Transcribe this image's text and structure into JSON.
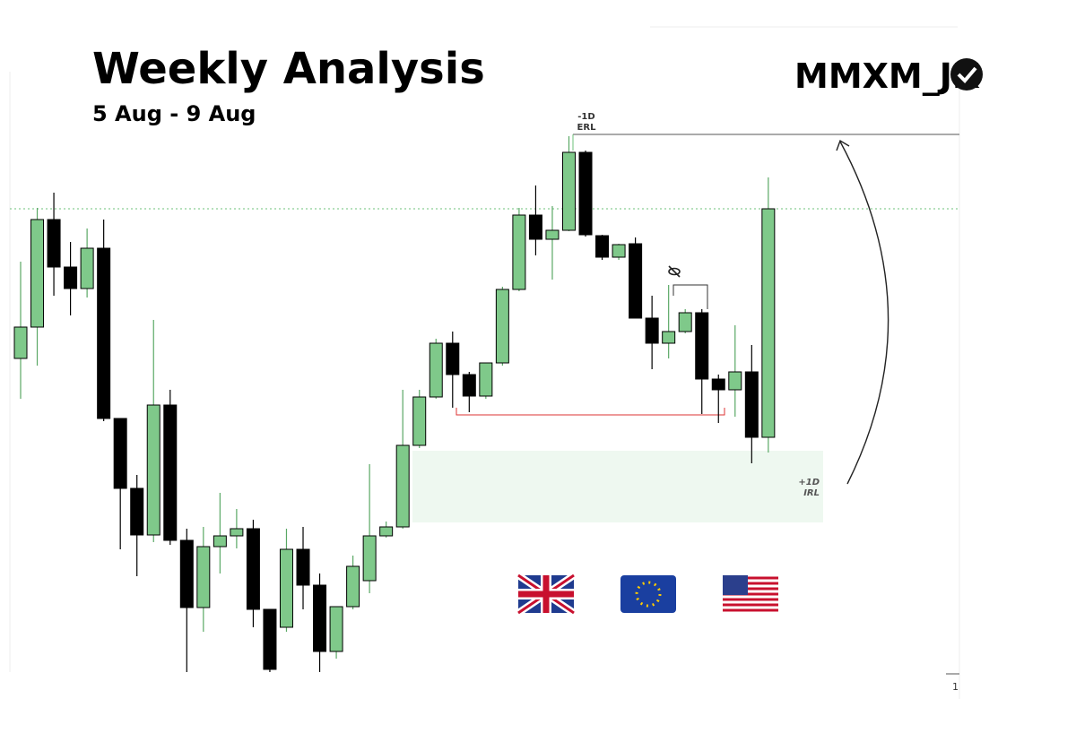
{
  "chart_data": {
    "type": "candlestick",
    "title": "Weekly Analysis",
    "subtitle": "5 Aug - 9 Aug",
    "brand": "MMXM_JK",
    "annotations": {
      "erl_top": "-1D",
      "erl_bottom": "ERL",
      "irl_top": "+1D",
      "irl_bottom": "IRL",
      "page": "1"
    },
    "up_color": "#7fc98a",
    "down_color": "#000000",
    "ylim": [
      0,
      640
    ],
    "open": [
      370,
      405,
      525,
      472,
      448,
      493,
      303,
      225,
      173,
      318,
      167,
      92,
      160,
      172,
      180,
      90,
      70,
      157,
      117,
      43,
      93,
      122,
      172,
      182,
      273,
      327,
      387,
      352,
      328,
      365,
      447,
      530,
      503,
      513,
      600,
      507,
      483,
      498,
      415,
      387,
      400,
      421,
      347,
      335,
      355,
      282
    ],
    "high": [
      478,
      538,
      555,
      500,
      515,
      525,
      303,
      240,
      413,
      335,
      180,
      182,
      220,
      202,
      190,
      90,
      180,
      182,
      130,
      93,
      150,
      252,
      188,
      335,
      335,
      392,
      400,
      355,
      365,
      450,
      538,
      563,
      540,
      618,
      602,
      508,
      498,
      505,
      440,
      452,
      425,
      425,
      352,
      407,
      385,
      572
    ],
    "low": [
      325,
      362,
      440,
      418,
      438,
      300,
      157,
      127,
      165,
      162,
      20,
      65,
      130,
      158,
      70,
      20,
      65,
      90,
      20,
      35,
      90,
      108,
      170,
      180,
      270,
      325,
      315,
      310,
      325,
      362,
      445,
      485,
      458,
      512,
      506,
      480,
      480,
      415,
      358,
      370,
      398,
      308,
      298,
      305,
      253,
      265
    ],
    "close": [
      405,
      525,
      472,
      448,
      493,
      303,
      225,
      173,
      318,
      167,
      92,
      160,
      172,
      180,
      90,
      23,
      157,
      117,
      43,
      93,
      138,
      172,
      182,
      273,
      327,
      387,
      352,
      328,
      365,
      447,
      530,
      503,
      513,
      600,
      508,
      483,
      497,
      415,
      387,
      400,
      421,
      347,
      335,
      355,
      282,
      537
    ]
  }
}
